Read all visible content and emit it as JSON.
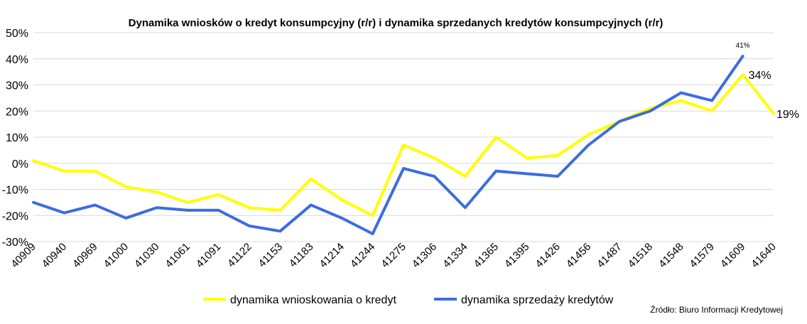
{
  "chart_data": {
    "type": "line",
    "title": "Dynamika wniosków o kredyt konsumpcyjny (r/r) i dynamika sprzedanych kredytów konsumpcyjnych (r/r)",
    "xlabel": "",
    "ylabel": "",
    "ylim": [
      -30,
      50
    ],
    "yticks": [
      "50%",
      "40%",
      "30%",
      "20%",
      "10%",
      "0%",
      "-10%",
      "-20%",
      "-30%"
    ],
    "categories": [
      "40909",
      "40940",
      "40969",
      "41000",
      "41030",
      "41061",
      "41091",
      "41122",
      "41153",
      "41183",
      "41214",
      "41244",
      "41275",
      "41306",
      "41334",
      "41365",
      "41395",
      "41426",
      "41456",
      "41487",
      "41518",
      "41548",
      "41579",
      "41609",
      "41640"
    ],
    "series": [
      {
        "name": "dynamika wnioskowania o kredyt",
        "color": "#FFFF00",
        "values": [
          1,
          -3,
          -3,
          -9,
          -11,
          -15,
          -12,
          -17,
          -18,
          -6,
          -14,
          -20,
          7,
          2,
          -5,
          10,
          2,
          3,
          11,
          16,
          21,
          24,
          20,
          34,
          19
        ]
      },
      {
        "name": "dynamika sprzedaży kredytów",
        "color": "#3C6CE0",
        "values": [
          -15,
          -19,
          -16,
          -21,
          -17,
          -18,
          -18,
          -24,
          -26,
          -16,
          -21,
          -27,
          -2,
          -5,
          -17,
          -3,
          -4,
          -5,
          7,
          16,
          20,
          27,
          24,
          41,
          null
        ]
      }
    ],
    "data_labels": [
      {
        "series": 0,
        "index": 23,
        "text": "34%"
      },
      {
        "series": 0,
        "index": 24,
        "text": "19%"
      },
      {
        "series": 1,
        "index": 23,
        "text": "41%"
      }
    ],
    "grid": true,
    "legend_position": "bottom"
  },
  "source_note": "Źródło: Biuro Informacji Kredytowej"
}
